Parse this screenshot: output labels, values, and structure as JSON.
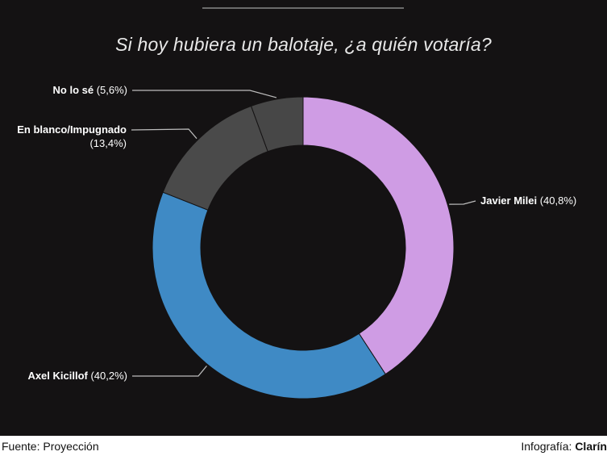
{
  "chart_data": {
    "type": "pie",
    "title": "Si hoy hubiera un balotaje, ¿a quién votaría?",
    "slices": [
      {
        "label": "Javier Milei",
        "display": "(40,8%)",
        "value": 40.8,
        "color": "#cf9ce4"
      },
      {
        "label": "Axel Kicillof",
        "display": "(40,2%)",
        "value": 40.2,
        "color": "#3f8ac5"
      },
      {
        "label": "En blanco/Impugnado",
        "display": "(13,4%)",
        "value": 13.4,
        "color": "#4a4a4a"
      },
      {
        "label": "No lo sé",
        "display": "(5,6%)",
        "value": 5.6,
        "color": "#474747"
      }
    ]
  },
  "footer": {
    "source": "Fuente: Proyección",
    "credit_prefix": "Infografía:",
    "credit_brand": "Clarín"
  }
}
